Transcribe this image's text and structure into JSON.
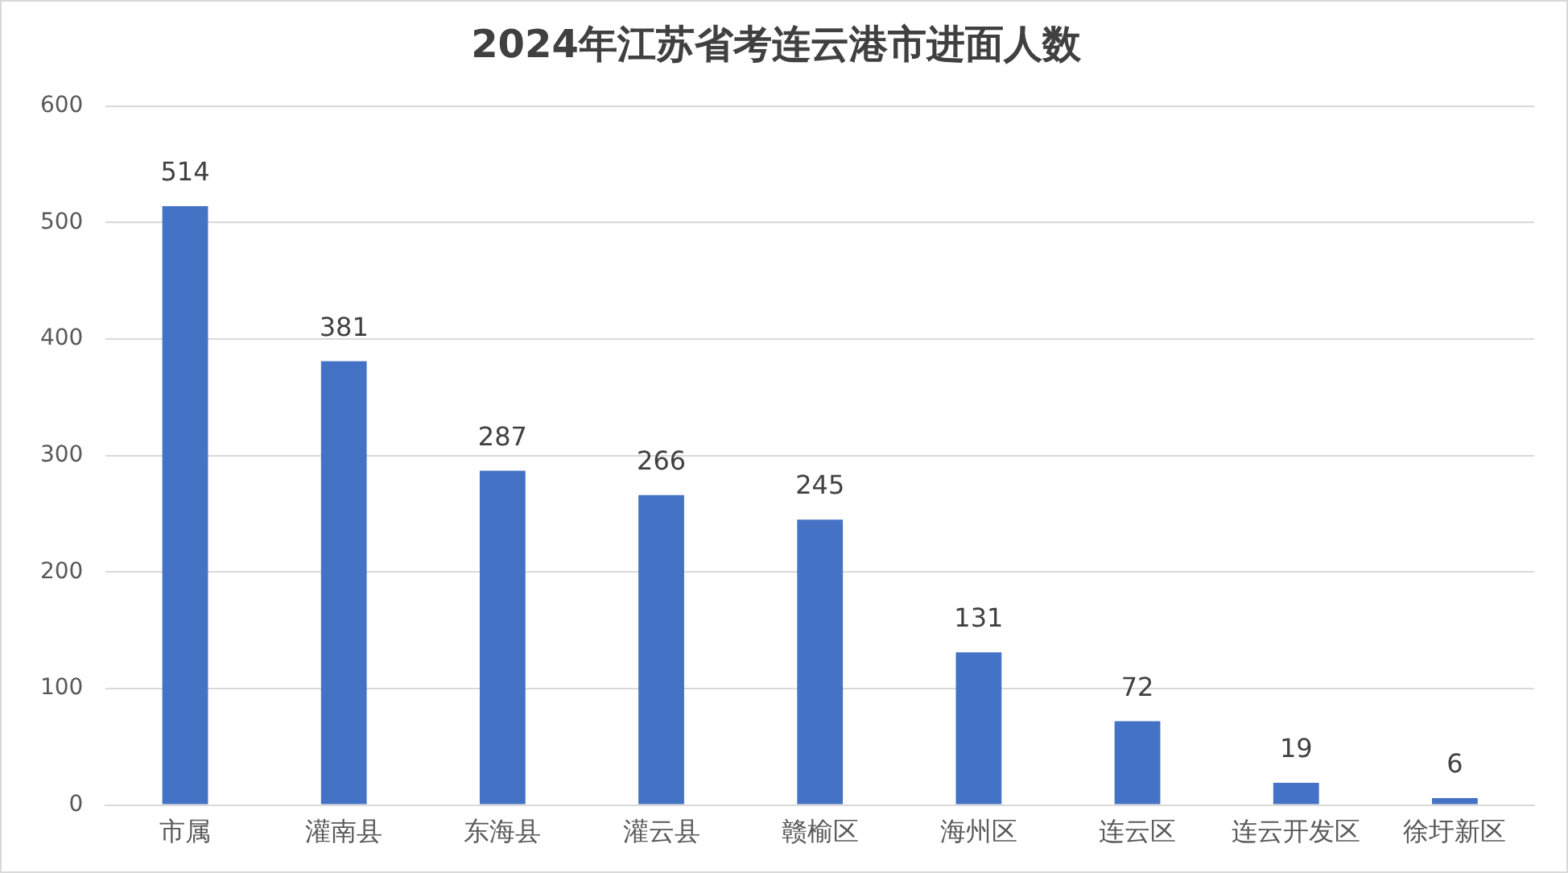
{
  "chart_data": {
    "type": "bar",
    "title": "2024年江苏省考连云港市进面人数",
    "categories": [
      "市属",
      "灌南县",
      "东海县",
      "灌云县",
      "赣榆区",
      "海州区",
      "连云区",
      "连云开发区",
      "徐圩新区"
    ],
    "values": [
      514,
      381,
      287,
      266,
      245,
      131,
      72,
      19,
      6
    ],
    "color": "#4472c4",
    "ylim": [
      0,
      600
    ],
    "yticks": [
      0,
      100,
      200,
      300,
      400,
      500,
      600
    ],
    "grid": "y",
    "data_labels": true,
    "legend": false
  }
}
